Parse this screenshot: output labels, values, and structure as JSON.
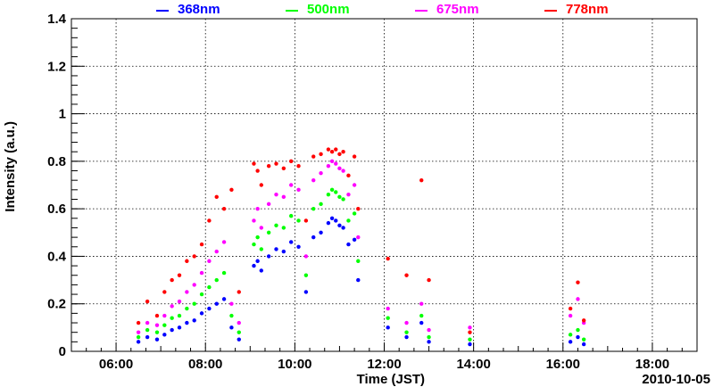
{
  "chart_data": {
    "type": "scatter",
    "title": "",
    "xlabel": "Time (JST)",
    "ylabel": "Intensity (a.u.)",
    "date_label": "2010-10-05",
    "xlim": [
      "05:00",
      "19:00"
    ],
    "ylim": [
      0,
      1.4
    ],
    "grid": true,
    "legend_position": "top",
    "x_ticks": [
      "06:00",
      "08:00",
      "10:00",
      "12:00",
      "14:00",
      "16:00",
      "18:00"
    ],
    "y_ticks": [
      "0",
      "0.2",
      "0.4",
      "0.6",
      "0.8",
      "1",
      "1.2",
      "1.4"
    ],
    "series": [
      {
        "name": "368nm",
        "color": "#0000ff",
        "points": [
          [
            "06:30",
            0.04
          ],
          [
            "06:42",
            0.06
          ],
          [
            "06:55",
            0.05
          ],
          [
            "07:05",
            0.07
          ],
          [
            "07:15",
            0.09
          ],
          [
            "07:25",
            0.1
          ],
          [
            "07:35",
            0.12
          ],
          [
            "07:45",
            0.13
          ],
          [
            "07:55",
            0.16
          ],
          [
            "08:05",
            0.18
          ],
          [
            "08:15",
            0.2
          ],
          [
            "08:25",
            0.22
          ],
          [
            "08:35",
            0.1
          ],
          [
            "08:45",
            0.05
          ],
          [
            "09:05",
            0.36
          ],
          [
            "09:10",
            0.38
          ],
          [
            "09:15",
            0.34
          ],
          [
            "09:25",
            0.4
          ],
          [
            "09:35",
            0.43
          ],
          [
            "09:45",
            0.42
          ],
          [
            "09:55",
            0.46
          ],
          [
            "10:05",
            0.44
          ],
          [
            "10:15",
            0.25
          ],
          [
            "10:25",
            0.48
          ],
          [
            "10:35",
            0.5
          ],
          [
            "10:45",
            0.54
          ],
          [
            "10:50",
            0.56
          ],
          [
            "10:55",
            0.55
          ],
          [
            "11:00",
            0.53
          ],
          [
            "11:05",
            0.52
          ],
          [
            "11:12",
            0.45
          ],
          [
            "11:20",
            0.47
          ],
          [
            "11:25",
            0.3
          ],
          [
            "12:05",
            0.1
          ],
          [
            "12:30",
            0.06
          ],
          [
            "12:50",
            0.12
          ],
          [
            "13:00",
            0.04
          ],
          [
            "13:55",
            0.03
          ],
          [
            "16:10",
            0.04
          ],
          [
            "16:20",
            0.06
          ],
          [
            "16:28",
            0.03
          ]
        ]
      },
      {
        "name": "500nm",
        "color": "#00ff00",
        "points": [
          [
            "06:30",
            0.06
          ],
          [
            "06:42",
            0.09
          ],
          [
            "06:55",
            0.08
          ],
          [
            "07:05",
            0.11
          ],
          [
            "07:15",
            0.14
          ],
          [
            "07:25",
            0.15
          ],
          [
            "07:35",
            0.18
          ],
          [
            "07:45",
            0.2
          ],
          [
            "07:55",
            0.24
          ],
          [
            "08:05",
            0.27
          ],
          [
            "08:15",
            0.3
          ],
          [
            "08:25",
            0.33
          ],
          [
            "08:35",
            0.15
          ],
          [
            "08:45",
            0.08
          ],
          [
            "09:05",
            0.45
          ],
          [
            "09:10",
            0.48
          ],
          [
            "09:15",
            0.43
          ],
          [
            "09:25",
            0.5
          ],
          [
            "09:35",
            0.53
          ],
          [
            "09:45",
            0.52
          ],
          [
            "09:55",
            0.57
          ],
          [
            "10:05",
            0.55
          ],
          [
            "10:15",
            0.32
          ],
          [
            "10:25",
            0.6
          ],
          [
            "10:35",
            0.62
          ],
          [
            "10:45",
            0.66
          ],
          [
            "10:50",
            0.68
          ],
          [
            "10:55",
            0.67
          ],
          [
            "11:00",
            0.65
          ],
          [
            "11:05",
            0.64
          ],
          [
            "11:12",
            0.55
          ],
          [
            "11:20",
            0.58
          ],
          [
            "11:25",
            0.38
          ],
          [
            "12:05",
            0.14
          ],
          [
            "12:30",
            0.08
          ],
          [
            "12:50",
            0.15
          ],
          [
            "13:00",
            0.06
          ],
          [
            "13:55",
            0.05
          ],
          [
            "16:10",
            0.07
          ],
          [
            "16:20",
            0.09
          ],
          [
            "16:28",
            0.05
          ]
        ]
      },
      {
        "name": "675nm",
        "color": "#ff00ff",
        "points": [
          [
            "06:30",
            0.08
          ],
          [
            "06:42",
            0.12
          ],
          [
            "06:55",
            0.11
          ],
          [
            "07:05",
            0.15
          ],
          [
            "07:15",
            0.19
          ],
          [
            "07:25",
            0.21
          ],
          [
            "07:35",
            0.25
          ],
          [
            "07:45",
            0.28
          ],
          [
            "07:55",
            0.33
          ],
          [
            "08:05",
            0.38
          ],
          [
            "08:15",
            0.42
          ],
          [
            "08:25",
            0.46
          ],
          [
            "08:35",
            0.2
          ],
          [
            "08:45",
            0.12
          ],
          [
            "09:05",
            0.55
          ],
          [
            "09:10",
            0.6
          ],
          [
            "09:15",
            0.52
          ],
          [
            "09:25",
            0.62
          ],
          [
            "09:35",
            0.66
          ],
          [
            "09:45",
            0.65
          ],
          [
            "09:55",
            0.7
          ],
          [
            "10:05",
            0.68
          ],
          [
            "10:15",
            0.4
          ],
          [
            "10:25",
            0.72
          ],
          [
            "10:35",
            0.75
          ],
          [
            "10:45",
            0.78
          ],
          [
            "10:50",
            0.8
          ],
          [
            "10:55",
            0.79
          ],
          [
            "11:00",
            0.77
          ],
          [
            "11:05",
            0.76
          ],
          [
            "11:12",
            0.66
          ],
          [
            "11:20",
            0.7
          ],
          [
            "11:25",
            0.48
          ],
          [
            "12:05",
            0.18
          ],
          [
            "12:30",
            0.12
          ],
          [
            "12:50",
            0.2
          ],
          [
            "13:00",
            0.09
          ],
          [
            "13:55",
            0.1
          ],
          [
            "16:10",
            0.15
          ],
          [
            "16:20",
            0.22
          ],
          [
            "16:28",
            0.12
          ]
        ]
      },
      {
        "name": "778nm",
        "color": "#ff0000",
        "points": [
          [
            "06:30",
            0.12
          ],
          [
            "06:42",
            0.21
          ],
          [
            "06:55",
            0.15
          ],
          [
            "07:05",
            0.25
          ],
          [
            "07:15",
            0.3
          ],
          [
            "07:25",
            0.32
          ],
          [
            "07:35",
            0.38
          ],
          [
            "07:45",
            0.4
          ],
          [
            "07:55",
            0.45
          ],
          [
            "08:05",
            0.55
          ],
          [
            "08:15",
            0.65
          ],
          [
            "08:25",
            0.6
          ],
          [
            "08:35",
            0.68
          ],
          [
            "08:45",
            0.25
          ],
          [
            "09:05",
            0.79
          ],
          [
            "09:10",
            0.76
          ],
          [
            "09:15",
            0.7
          ],
          [
            "09:25",
            0.78
          ],
          [
            "09:35",
            0.79
          ],
          [
            "09:45",
            0.77
          ],
          [
            "09:55",
            0.8
          ],
          [
            "10:05",
            0.78
          ],
          [
            "10:15",
            0.55
          ],
          [
            "10:25",
            0.82
          ],
          [
            "10:35",
            0.83
          ],
          [
            "10:45",
            0.85
          ],
          [
            "10:50",
            0.84
          ],
          [
            "10:55",
            0.85
          ],
          [
            "11:00",
            0.83
          ],
          [
            "11:05",
            0.84
          ],
          [
            "11:12",
            0.74
          ],
          [
            "11:20",
            0.82
          ],
          [
            "11:25",
            0.6
          ],
          [
            "12:05",
            0.39
          ],
          [
            "12:30",
            0.32
          ],
          [
            "12:50",
            0.72
          ],
          [
            "13:00",
            0.3
          ],
          [
            "13:55",
            0.08
          ],
          [
            "16:10",
            0.18
          ],
          [
            "16:20",
            0.29
          ],
          [
            "16:28",
            0.13
          ]
        ]
      }
    ]
  }
}
